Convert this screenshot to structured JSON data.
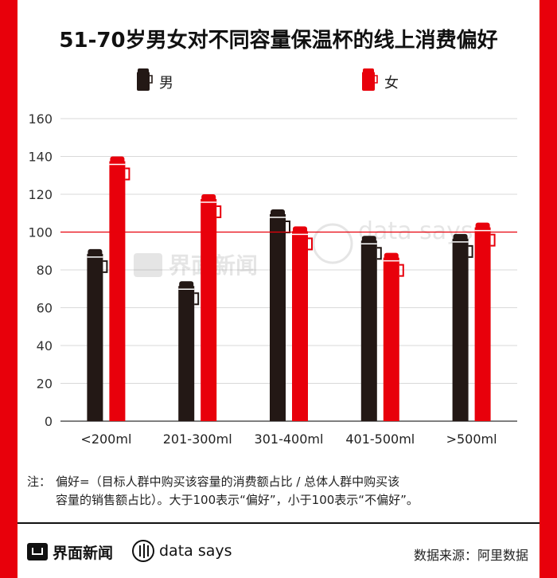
{
  "title": "51-70岁男女对不同容量保温杯的线上消费偏好",
  "legend": [
    {
      "label": "男",
      "color": "#231815"
    },
    {
      "label": "女",
      "color": "#e8000b"
    }
  ],
  "chart_data": {
    "type": "bar",
    "categories": [
      "<200ml",
      "201-300ml",
      "301-400ml",
      "401-500ml",
      ">500ml"
    ],
    "series": [
      {
        "name": "男",
        "values": [
          91,
          74,
          112,
          98,
          99
        ]
      },
      {
        "name": "女",
        "values": [
          140,
          120,
          103,
          89,
          105
        ]
      }
    ],
    "ylim": [
      0,
      160
    ],
    "yticks": [
      0,
      20,
      40,
      60,
      80,
      100,
      120,
      140,
      160
    ],
    "reference_line": 100,
    "grid": true,
    "legend_position": "top"
  },
  "watermark": {
    "brand": "界面新闻",
    "tagline": "data says"
  },
  "note": {
    "prefix": "注：",
    "line1": "偏好=（目标人群中购买该容量的消费额占比 / 总体人群中购买该",
    "line2": "容量的销售额占比）。大于100表示“偏好”，小于100表示“不偏好”。"
  },
  "footer": {
    "brand1": "界面新闻",
    "brand2": "data says",
    "source": "数据来源：阿里数据"
  },
  "colors": {
    "accent": "#e8000b",
    "male": "#231815",
    "female": "#e8000b",
    "grid": "#d9d9d9"
  }
}
